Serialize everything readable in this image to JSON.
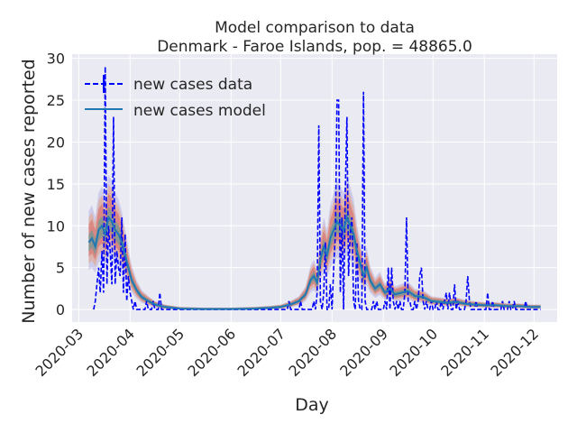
{
  "chart_data": {
    "type": "line",
    "title": "Model comparison to data",
    "subtitle": "Denmark - Faroe Islands, pop. = 48865.0",
    "xlabel": "Day",
    "ylabel": "Number of new cases reported",
    "xlim": [
      "2020-02-26",
      "2020-12-15"
    ],
    "ylim": [
      -1.5,
      30.5
    ],
    "x_ticks": [
      "2020-03",
      "2020-04",
      "2020-05",
      "2020-06",
      "2020-07",
      "2020-08",
      "2020-09",
      "2020-10",
      "2020-11",
      "2020-12"
    ],
    "y_ticks": [
      0,
      5,
      10,
      15,
      20,
      25,
      30
    ],
    "grid": true,
    "legend_position": "top-left",
    "colors": {
      "background": "#eaeaf2",
      "grid": "#ffffff",
      "data": "#0000ff",
      "model": "#1f77b4",
      "band_red": "#d62728",
      "band_orange": "#ff7f0e",
      "band_purple": "#6a5acd",
      "band_teal": "#2ca5a0"
    },
    "series": [
      {
        "name": "new cases data",
        "style": "dashed",
        "points": [
          [
            "2020-03-10",
            0
          ],
          [
            "2020-03-11",
            1
          ],
          [
            "2020-03-12",
            3
          ],
          [
            "2020-03-13",
            5
          ],
          [
            "2020-03-14",
            2
          ],
          [
            "2020-03-15",
            7
          ],
          [
            "2020-03-16",
            2
          ],
          [
            "2020-03-17",
            29
          ],
          [
            "2020-03-18",
            3
          ],
          [
            "2020-03-19",
            10
          ],
          [
            "2020-03-20",
            7
          ],
          [
            "2020-03-21",
            3
          ],
          [
            "2020-03-22",
            23
          ],
          [
            "2020-03-23",
            3
          ],
          [
            "2020-03-24",
            7
          ],
          [
            "2020-03-25",
            5
          ],
          [
            "2020-03-26",
            4
          ],
          [
            "2020-03-27",
            11
          ],
          [
            "2020-03-28",
            2
          ],
          [
            "2020-03-29",
            9
          ],
          [
            "2020-03-30",
            1
          ],
          [
            "2020-03-31",
            4
          ],
          [
            "2020-04-01",
            2
          ],
          [
            "2020-04-02",
            1
          ],
          [
            "2020-04-03",
            0
          ],
          [
            "2020-04-04",
            1
          ],
          [
            "2020-04-05",
            0
          ],
          [
            "2020-04-10",
            0
          ],
          [
            "2020-04-11",
            1
          ],
          [
            "2020-04-12",
            0
          ],
          [
            "2020-04-14",
            0
          ],
          [
            "2020-04-15",
            1
          ],
          [
            "2020-04-16",
            0
          ],
          [
            "2020-04-18",
            0
          ],
          [
            "2020-04-19",
            2
          ],
          [
            "2020-04-20",
            0
          ],
          [
            "2020-05-10",
            0
          ],
          [
            "2020-06-01",
            0
          ],
          [
            "2020-07-01",
            0
          ],
          [
            "2020-07-05",
            0
          ],
          [
            "2020-07-06",
            1
          ],
          [
            "2020-07-07",
            0
          ],
          [
            "2020-07-12",
            0
          ],
          [
            "2020-07-13",
            1
          ],
          [
            "2020-07-14",
            0
          ],
          [
            "2020-07-20",
            0
          ],
          [
            "2020-07-21",
            1
          ],
          [
            "2020-07-22",
            0
          ],
          [
            "2020-07-23",
            2
          ],
          [
            "2020-07-24",
            22
          ],
          [
            "2020-07-25",
            1
          ],
          [
            "2020-07-26",
            0
          ],
          [
            "2020-07-27",
            2
          ],
          [
            "2020-07-28",
            8
          ],
          [
            "2020-07-29",
            0
          ],
          [
            "2020-07-30",
            0
          ],
          [
            "2020-07-31",
            3
          ],
          [
            "2020-08-01",
            0
          ],
          [
            "2020-08-02",
            5
          ],
          [
            "2020-08-03",
            9
          ],
          [
            "2020-08-04",
            25
          ],
          [
            "2020-08-05",
            25
          ],
          [
            "2020-08-06",
            2
          ],
          [
            "2020-08-07",
            11
          ],
          [
            "2020-08-08",
            0
          ],
          [
            "2020-08-09",
            14
          ],
          [
            "2020-08-10",
            23
          ],
          [
            "2020-08-11",
            4
          ],
          [
            "2020-08-12",
            9
          ],
          [
            "2020-08-13",
            11
          ],
          [
            "2020-08-14",
            1
          ],
          [
            "2020-08-15",
            0
          ],
          [
            "2020-08-16",
            8
          ],
          [
            "2020-08-17",
            1
          ],
          [
            "2020-08-18",
            0
          ],
          [
            "2020-08-19",
            0
          ],
          [
            "2020-08-20",
            26
          ],
          [
            "2020-08-21",
            1
          ],
          [
            "2020-08-22",
            0
          ],
          [
            "2020-08-25",
            0
          ],
          [
            "2020-08-26",
            1
          ],
          [
            "2020-08-27",
            0
          ],
          [
            "2020-08-28",
            1
          ],
          [
            "2020-08-29",
            0
          ],
          [
            "2020-09-01",
            0
          ],
          [
            "2020-09-02",
            1
          ],
          [
            "2020-09-03",
            0
          ],
          [
            "2020-09-04",
            5
          ],
          [
            "2020-09-05",
            0
          ],
          [
            "2020-09-06",
            5
          ],
          [
            "2020-09-07",
            1
          ],
          [
            "2020-09-08",
            0
          ],
          [
            "2020-09-09",
            1
          ],
          [
            "2020-09-10",
            0
          ],
          [
            "2020-09-11",
            1
          ],
          [
            "2020-09-12",
            0
          ],
          [
            "2020-09-13",
            0
          ],
          [
            "2020-09-14",
            2
          ],
          [
            "2020-09-15",
            11
          ],
          [
            "2020-09-16",
            1
          ],
          [
            "2020-09-17",
            1
          ],
          [
            "2020-09-18",
            0
          ],
          [
            "2020-09-19",
            0
          ],
          [
            "2020-09-20",
            1
          ],
          [
            "2020-09-21",
            0
          ],
          [
            "2020-09-22",
            1
          ],
          [
            "2020-09-23",
            4
          ],
          [
            "2020-09-24",
            5
          ],
          [
            "2020-09-25",
            1
          ],
          [
            "2020-09-26",
            0
          ],
          [
            "2020-09-27",
            1
          ],
          [
            "2020-09-28",
            0
          ],
          [
            "2020-09-29",
            0
          ],
          [
            "2020-09-30",
            1
          ],
          [
            "2020-10-01",
            0
          ],
          [
            "2020-10-02",
            0
          ],
          [
            "2020-10-03",
            1
          ],
          [
            "2020-10-04",
            0
          ],
          [
            "2020-10-05",
            0
          ],
          [
            "2020-10-06",
            1
          ],
          [
            "2020-10-07",
            0
          ],
          [
            "2020-10-08",
            1
          ],
          [
            "2020-10-09",
            2
          ],
          [
            "2020-10-10",
            0
          ],
          [
            "2020-10-11",
            2
          ],
          [
            "2020-10-12",
            0
          ],
          [
            "2020-10-13",
            0
          ],
          [
            "2020-10-14",
            3
          ],
          [
            "2020-10-15",
            0
          ],
          [
            "2020-10-16",
            1
          ],
          [
            "2020-10-17",
            0
          ],
          [
            "2020-10-18",
            0
          ],
          [
            "2020-10-19",
            0
          ],
          [
            "2020-10-20",
            0
          ],
          [
            "2020-10-21",
            1
          ],
          [
            "2020-10-22",
            4
          ],
          [
            "2020-10-23",
            1
          ],
          [
            "2020-10-24",
            0
          ],
          [
            "2020-10-26",
            0
          ],
          [
            "2020-10-27",
            1
          ],
          [
            "2020-10-28",
            0
          ],
          [
            "2020-11-02",
            0
          ],
          [
            "2020-11-03",
            2
          ],
          [
            "2020-11-04",
            0
          ],
          [
            "2020-11-05",
            0
          ],
          [
            "2020-11-06",
            1
          ],
          [
            "2020-11-07",
            0
          ],
          [
            "2020-11-10",
            0
          ],
          [
            "2020-11-11",
            0
          ],
          [
            "2020-11-12",
            1
          ],
          [
            "2020-11-13",
            0
          ],
          [
            "2020-11-15",
            0
          ],
          [
            "2020-11-16",
            1
          ],
          [
            "2020-11-17",
            0
          ],
          [
            "2020-11-18",
            0
          ],
          [
            "2020-11-19",
            1
          ],
          [
            "2020-11-20",
            0
          ],
          [
            "2020-11-25",
            0
          ],
          [
            "2020-11-26",
            1
          ],
          [
            "2020-11-27",
            0
          ],
          [
            "2020-12-05",
            0
          ]
        ]
      },
      {
        "name": "new cases model",
        "style": "solid",
        "points": [
          [
            "2020-03-07",
            8.0
          ],
          [
            "2020-03-09",
            8.5
          ],
          [
            "2020-03-11",
            7.5
          ],
          [
            "2020-03-13",
            9.5
          ],
          [
            "2020-03-15",
            10.0
          ],
          [
            "2020-03-17",
            9.0
          ],
          [
            "2020-03-19",
            11.0
          ],
          [
            "2020-03-21",
            10.5
          ],
          [
            "2020-03-23",
            9.5
          ],
          [
            "2020-03-25",
            9.0
          ],
          [
            "2020-03-27",
            8.0
          ],
          [
            "2020-03-29",
            6.5
          ],
          [
            "2020-03-31",
            5.0
          ],
          [
            "2020-04-02",
            3.5
          ],
          [
            "2020-04-05",
            2.3
          ],
          [
            "2020-04-08",
            1.5
          ],
          [
            "2020-04-12",
            1.0
          ],
          [
            "2020-04-16",
            0.6
          ],
          [
            "2020-04-22",
            0.3
          ],
          [
            "2020-05-01",
            0.1
          ],
          [
            "2020-05-15",
            0.05
          ],
          [
            "2020-06-01",
            0.05
          ],
          [
            "2020-06-15",
            0.1
          ],
          [
            "2020-06-25",
            0.2
          ],
          [
            "2020-07-01",
            0.3
          ],
          [
            "2020-07-07",
            0.6
          ],
          [
            "2020-07-12",
            1.0
          ],
          [
            "2020-07-16",
            1.8
          ],
          [
            "2020-07-19",
            3.5
          ],
          [
            "2020-07-21",
            4.0
          ],
          [
            "2020-07-23",
            3.2
          ],
          [
            "2020-07-25",
            6.0
          ],
          [
            "2020-07-27",
            7.5
          ],
          [
            "2020-07-29",
            6.5
          ],
          [
            "2020-07-31",
            8.5
          ],
          [
            "2020-08-02",
            9.5
          ],
          [
            "2020-08-04",
            10.5
          ],
          [
            "2020-08-06",
            10.0
          ],
          [
            "2020-08-08",
            9.5
          ],
          [
            "2020-08-10",
            11.0
          ],
          [
            "2020-08-12",
            10.0
          ],
          [
            "2020-08-14",
            9.0
          ],
          [
            "2020-08-16",
            7.0
          ],
          [
            "2020-08-18",
            5.5
          ],
          [
            "2020-08-20",
            4.0
          ],
          [
            "2020-08-22",
            5.0
          ],
          [
            "2020-08-24",
            3.5
          ],
          [
            "2020-08-27",
            2.5
          ],
          [
            "2020-08-30",
            3.0
          ],
          [
            "2020-09-02",
            2.0
          ],
          [
            "2020-09-05",
            2.5
          ],
          [
            "2020-09-08",
            1.8
          ],
          [
            "2020-09-12",
            2.0
          ],
          [
            "2020-09-16",
            2.2
          ],
          [
            "2020-09-20",
            1.6
          ],
          [
            "2020-09-25",
            1.5
          ],
          [
            "2020-09-30",
            1.0
          ],
          [
            "2020-10-05",
            0.9
          ],
          [
            "2020-10-10",
            0.8
          ],
          [
            "2020-10-15",
            0.9
          ],
          [
            "2020-10-20",
            0.7
          ],
          [
            "2020-10-25",
            0.6
          ],
          [
            "2020-11-01",
            0.5
          ],
          [
            "2020-11-08",
            0.5
          ],
          [
            "2020-11-15",
            0.4
          ],
          [
            "2020-11-22",
            0.4
          ],
          [
            "2020-11-29",
            0.3
          ],
          [
            "2020-12-05",
            0.3
          ]
        ]
      }
    ]
  }
}
